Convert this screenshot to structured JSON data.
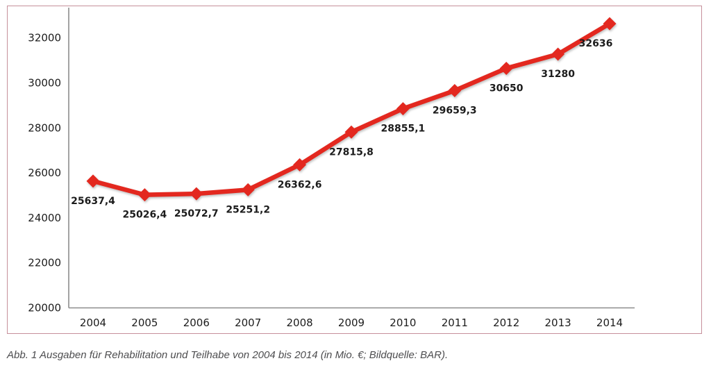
{
  "caption": {
    "text": "Abb. 1 Ausgaben für Rehabilitation und Teilhabe von 2004 bis 2014 (in Mio. €; Bildquelle: BAR)."
  },
  "colors": {
    "series_red": "#e3281f",
    "frame_border": "#c68f9a",
    "axis_gray": "#8c8c8c",
    "tick_text": "#1c1c1c",
    "caption_text": "#4d4d4f"
  },
  "chart_data": {
    "type": "line",
    "title": "",
    "xlabel": "",
    "ylabel": "",
    "categories": [
      "2004",
      "2005",
      "2006",
      "2007",
      "2008",
      "2009",
      "2010",
      "2011",
      "2012",
      "2013",
      "2014"
    ],
    "series": [
      {
        "name": "Ausgaben für Rehabilitation und Teilhabe (in Mio. €)",
        "values": [
          25637.4,
          25026.4,
          25072.7,
          25251.2,
          26362.6,
          27815.8,
          28855.1,
          29659.3,
          30650,
          31280,
          32636
        ],
        "data_labels": [
          "25637,4",
          "25026,4",
          "25072,7",
          "25251,2",
          "26362,6",
          "27815,8",
          "28855,1",
          "29659,3",
          "30650",
          "31280",
          "32636"
        ],
        "color": "#e3281f",
        "marker": "diamond"
      }
    ],
    "y_ticks": [
      20000,
      22000,
      24000,
      26000,
      28000,
      30000,
      32000
    ],
    "ylim": [
      20000,
      33300
    ],
    "grid": false,
    "legend": false
  }
}
